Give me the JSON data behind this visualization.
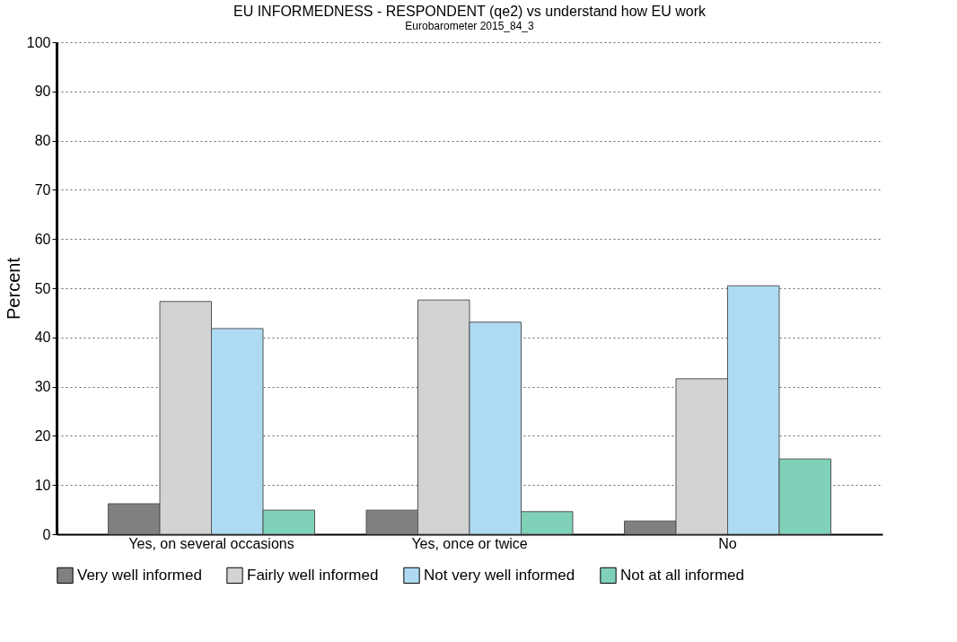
{
  "chart_data": {
    "type": "bar",
    "title": "EU INFORMEDNESS - RESPONDENT (qe2) vs understand how EU work",
    "subtitle": "Eurobarometer 2015_84_3",
    "ylabel": "Percent",
    "categories": [
      "Yes, on several occasions",
      "Yes, once or twice",
      "No"
    ],
    "series": [
      {
        "name": "Very well informed",
        "color": "#808080",
        "values": [
          6.2,
          4.9,
          2.7
        ]
      },
      {
        "name": "Fairly well informed",
        "color": "#d3d3d3",
        "values": [
          47.3,
          47.6,
          31.6
        ]
      },
      {
        "name": "Not very well informed",
        "color": "#aedbf3",
        "values": [
          41.8,
          43.1,
          50.5
        ]
      },
      {
        "name": "Not at all informed",
        "color": "#80d1b9",
        "values": [
          4.9,
          4.6,
          15.3
        ]
      }
    ],
    "ylim": [
      0,
      100
    ],
    "yticks": [
      0,
      10,
      20,
      30,
      40,
      50,
      60,
      70,
      80,
      90,
      100
    ],
    "grid": "y",
    "legend": "bottom"
  }
}
